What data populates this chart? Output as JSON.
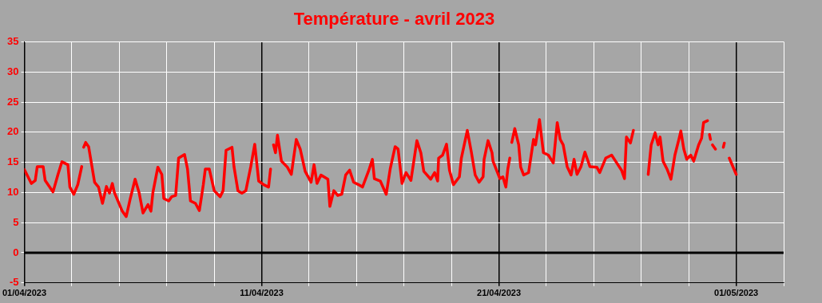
{
  "chart_data": {
    "type": "line",
    "title": "Température - avril 2023",
    "xlim": [
      "2023-04-01",
      "2023-05-03"
    ],
    "xticks": [
      {
        "value": "2023-04-01",
        "label": "01/04/2023"
      },
      {
        "value": "2023-04-03",
        "label": null
      },
      {
        "value": "2023-04-05",
        "label": null
      },
      {
        "value": "2023-04-07",
        "label": null
      },
      {
        "value": "2023-04-09",
        "label": null
      },
      {
        "value": "2023-04-11",
        "label": "11/04/2023"
      },
      {
        "value": "2023-04-13",
        "label": null
      },
      {
        "value": "2023-04-15",
        "label": null
      },
      {
        "value": "2023-04-17",
        "label": null
      },
      {
        "value": "2023-04-19",
        "label": null
      },
      {
        "value": "2023-04-21",
        "label": "21/04/2023"
      },
      {
        "value": "2023-04-23",
        "label": null
      },
      {
        "value": "2023-04-25",
        "label": null
      },
      {
        "value": "2023-04-27",
        "label": null
      },
      {
        "value": "2023-04-29",
        "label": null
      },
      {
        "value": "2023-05-01",
        "label": "01/05/2023"
      },
      {
        "value": "2023-05-03",
        "label": null
      }
    ],
    "ylim": [
      -5,
      35
    ],
    "yticks": [
      -5,
      0,
      5,
      10,
      15,
      20,
      25,
      30,
      35
    ],
    "grid": true,
    "ref_lines": [
      {
        "axis": "y",
        "value": 0,
        "color": "#000000"
      }
    ],
    "series": [
      {
        "color": "#ff0000",
        "x": [
          "2023-04-01T00:00",
          "2023-04-01T07:00",
          "2023-04-01T11:00",
          "2023-04-01T13:00",
          "2023-04-01T19:00",
          "2023-04-01T21:00",
          "2023-04-02T05:00",
          "2023-04-02T10:00",
          "2023-04-02T14:00",
          "2023-04-02T20:00",
          "2023-04-02T22:00",
          "2023-04-03T02:00",
          "2023-04-03T06:00",
          "2023-04-03T10:00",
          "2023-04-03T11:00",
          "2023-04-03T12:00",
          "2023-04-03T14:00",
          "2023-04-03T17:00",
          "2023-04-03T23:00",
          "2023-04-04T03:00",
          "2023-04-04T07:00",
          "2023-04-04T11:00",
          "2023-04-04T14:00",
          "2023-04-04T17:00",
          "2023-04-04T19:00",
          "2023-04-05T03:00",
          "2023-04-05T07:00",
          "2023-04-05T11:00",
          "2023-04-05T16:00",
          "2023-04-05T20:00",
          "2023-04-06T00:00",
          "2023-04-06T05:00",
          "2023-04-06T08:00",
          "2023-04-06T10:00",
          "2023-04-06T15:00",
          "2023-04-06T19:00",
          "2023-04-06T21:00",
          "2023-04-07T02:00",
          "2023-04-07T05:00",
          "2023-04-07T09:00",
          "2023-04-07T12:00",
          "2023-04-07T18:00",
          "2023-04-07T21:00",
          "2023-04-08T00:00",
          "2023-04-08T05:00",
          "2023-04-08T09:00",
          "2023-04-08T13:00",
          "2023-04-08T15:00",
          "2023-04-08T19:00",
          "2023-04-09T00:00",
          "2023-04-09T06:00",
          "2023-04-09T09:00",
          "2023-04-09T12:00",
          "2023-04-09T18:00",
          "2023-04-09T20:00",
          "2023-04-10T00:00",
          "2023-04-10T04:00",
          "2023-04-10T08:00",
          "2023-04-10T13:00",
          "2023-04-10T17:00",
          "2023-04-10T21:00",
          "2023-04-11T02:00",
          "2023-04-11T07:00",
          "2023-04-11T09:00",
          "2023-04-11T10:00",
          "2023-04-11T12:00",
          "2023-04-11T14:00",
          "2023-04-11T16:00",
          "2023-04-11T20:00",
          "2023-04-12T02:00",
          "2023-04-12T06:00",
          "2023-04-12T11:00",
          "2023-04-12T15:00",
          "2023-04-12T20:00",
          "2023-04-13T02:00",
          "2023-04-13T05:00",
          "2023-04-13T08:00",
          "2023-04-13T12:00",
          "2023-04-13T19:00",
          "2023-04-13T21:00",
          "2023-04-14T01:00",
          "2023-04-14T05:00",
          "2023-04-14T09:00",
          "2023-04-14T13:00",
          "2023-04-14T17:00",
          "2023-04-14T21:00",
          "2023-04-15T02:00",
          "2023-04-15T06:00",
          "2023-04-15T12:00",
          "2023-04-15T16:00",
          "2023-04-15T18:00",
          "2023-04-16T00:00",
          "2023-04-16T06:00",
          "2023-04-16T10:00",
          "2023-04-16T15:00",
          "2023-04-16T18:00",
          "2023-04-16T22:00",
          "2023-04-17T02:00",
          "2023-04-17T07:00",
          "2023-04-17T13:00",
          "2023-04-17T17:00",
          "2023-04-17T20:00",
          "2023-04-18T03:00",
          "2023-04-18T07:00",
          "2023-04-18T10:00",
          "2023-04-18T11:00",
          "2023-04-18T15:00",
          "2023-04-18T19:00",
          "2023-04-18T22:00",
          "2023-04-19T02:00",
          "2023-04-19T08:00",
          "2023-04-19T10:00",
          "2023-04-19T16:00",
          "2023-04-19T20:00",
          "2023-04-20T00:00",
          "2023-04-20T04:00",
          "2023-04-20T08:00",
          "2023-04-20T09:00",
          "2023-04-20T13:00",
          "2023-04-20T17:00",
          "2023-04-20T18:00",
          "2023-04-21T01:00",
          "2023-04-21T04:00",
          "2023-04-21T07:00",
          "2023-04-21T09:00",
          "2023-04-21T11:00",
          "2023-04-21T12:00",
          "2023-04-21T13:00",
          "2023-04-21T16:00",
          "2023-04-21T20:00",
          "2023-04-21T22:00",
          "2023-04-22T01:00",
          "2023-04-22T06:00",
          "2023-04-22T11:00",
          "2023-04-22T13:00",
          "2023-04-22T17:00",
          "2023-04-22T21:00",
          "2023-04-23T02:00",
          "2023-04-23T07:00",
          "2023-04-23T11:00",
          "2023-04-23T14:00",
          "2023-04-23T17:00",
          "2023-04-23T21:00",
          "2023-04-24T01:00",
          "2023-04-24T04:00",
          "2023-04-24T07:00",
          "2023-04-24T11:00",
          "2023-04-24T15:00",
          "2023-04-24T20:00",
          "2023-04-25T03:00",
          "2023-04-25T06:00",
          "2023-04-25T12:00",
          "2023-04-25T18:00",
          "2023-04-25T22:00",
          "2023-04-26T04:00",
          "2023-04-26T07:00",
          "2023-04-26T09:00",
          "2023-04-26T13:00",
          "2023-04-26T16:00",
          "2023-04-27T00:00",
          "2023-04-27T07:00",
          "2023-04-27T10:00",
          "2023-04-27T14:00",
          "2023-04-27T17:00",
          "2023-04-27T19:00",
          "2023-04-27T22:00",
          "2023-04-28T02:00",
          "2023-04-28T06:00",
          "2023-04-28T10:00",
          "2023-04-28T14:00",
          "2023-04-28T16:00",
          "2023-04-28T19:00",
          "2023-04-28T22:00",
          "2023-04-29T02:00",
          "2023-04-29T05:00",
          "2023-04-29T10:00",
          "2023-04-29T13:00",
          "2023-04-29T15:00",
          "2023-04-29T19:00",
          "2023-04-29T20:00",
          "2023-04-29T21:00",
          "2023-04-29T22:00",
          "2023-04-29T23:00",
          "2023-04-30T00:00",
          "2023-04-30T03:00",
          "2023-04-30T05:00",
          "2023-04-30T11:00",
          "2023-04-30T12:00",
          "2023-04-30T14:00",
          "2023-04-30T17:00",
          "2023-05-01T00:00"
        ],
        "values": [
          13.8,
          11.5,
          12,
          14.3,
          14.3,
          12,
          10.1,
          13,
          15.1,
          14.6,
          10.9,
          9.7,
          11.3,
          14.3,
          null,
          17.5,
          18.3,
          17.6,
          11.7,
          10.9,
          8.2,
          11,
          9.9,
          11.5,
          10,
          6.9,
          6,
          8.9,
          12.2,
          10,
          6.6,
          8,
          6.9,
          10,
          14.2,
          13,
          9,
          8.6,
          9.3,
          9.5,
          15.7,
          16.3,
          13.9,
          8.6,
          8.2,
          7,
          11.3,
          13.9,
          13.9,
          10.3,
          9.3,
          10.3,
          17,
          17.5,
          14.3,
          10.3,
          9.9,
          10.3,
          14.3,
          18,
          11.9,
          11.3,
          10.9,
          13.9,
          null,
          17.9,
          16.6,
          19.5,
          15.2,
          14.2,
          13,
          18.8,
          17.2,
          13.5,
          11.7,
          14.6,
          11.5,
          12.9,
          12.2,
          7.7,
          10.3,
          9.5,
          9.7,
          12.9,
          13.7,
          11.7,
          11.3,
          10.9,
          13.5,
          15.5,
          12.3,
          11.9,
          9.7,
          13.9,
          17.6,
          17.2,
          11.5,
          13.3,
          12,
          18.6,
          16.6,
          13.5,
          12.2,
          13.3,
          11.9,
          15.7,
          16.2,
          18,
          13.7,
          11.3,
          12.6,
          15.7,
          20.3,
          16.8,
          12.9,
          11.7,
          12.6,
          15.5,
          18.6,
          16.6,
          15.2,
          12.3,
          12.6,
          10.9,
          13.9,
          15.7,
          null,
          18.3,
          20.6,
          17.9,
          14.2,
          12.9,
          13.3,
          18.8,
          17.9,
          22.1,
          16.6,
          16.2,
          14.9,
          21.6,
          18.8,
          17.9,
          14.3,
          12.9,
          15.5,
          13,
          14.3,
          16.7,
          14.3,
          14.2,
          13.3,
          15.7,
          16.2,
          15.2,
          13.7,
          12.3,
          19.2,
          18.2,
          20.3,
          null,
          13,
          17.9,
          19.9,
          17.9,
          19.2,
          15.2,
          13.9,
          12.2,
          16.2,
          18.8,
          20.2,
          17.2,
          15.5,
          16.2,
          15.2,
          17.9,
          19,
          21.6,
          21.9,
          null,
          19.6,
          18.8,
          null,
          17.9,
          17.2,
          null,
          17.5,
          18.2,
          null,
          15.7,
          13
        ]
      }
    ]
  }
}
